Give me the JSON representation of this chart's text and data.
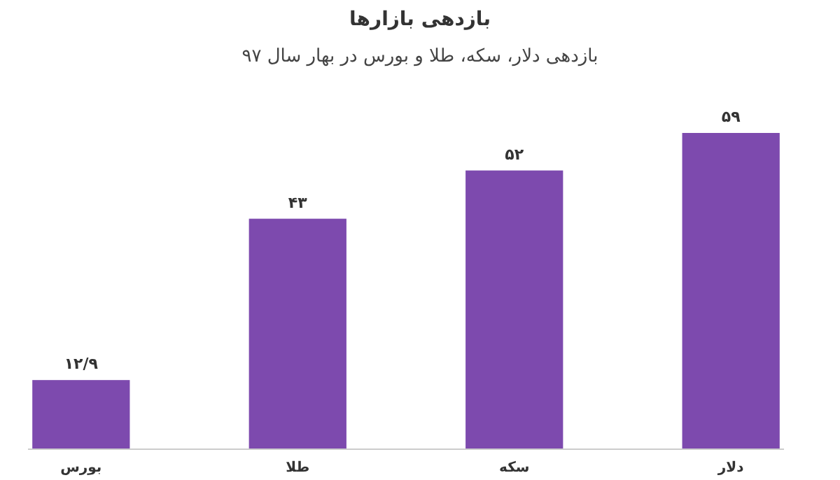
{
  "chart_data": {
    "type": "bar",
    "title": "بازدهی بازارها",
    "subtitle": "بازدهی دلار، سکه، طلا و بورس در بهار سال ۹۷",
    "categories": [
      "بورس",
      "طلا",
      "سکه",
      "دلار"
    ],
    "values": [
      12.9,
      43,
      52,
      59
    ],
    "value_labels": [
      "۱۲/۹",
      "۴۳",
      "۵۲",
      "۵۹"
    ],
    "color": "#7d4aae"
  }
}
